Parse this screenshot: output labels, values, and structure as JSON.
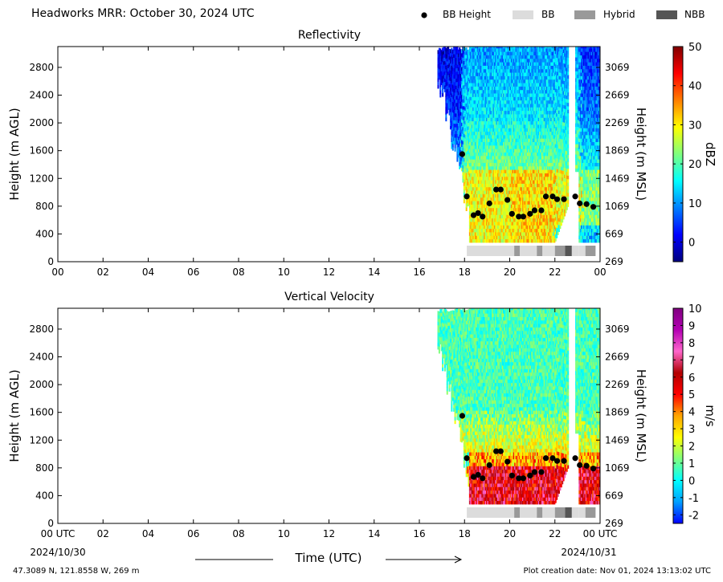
{
  "figure": {
    "title": "Headworks MRR:  October 30, 2024 UTC",
    "location": "47.3089 N, 121.8558 W, 269 m",
    "creation_date": "Plot creation date: Nov 01, 2024 13:13:02 UTC",
    "time_label": "Time (UTC)",
    "start_tick_label": "00 UTC",
    "end_tick_label": "00 UTC",
    "start_date": "2024/10/30",
    "end_date": "2024/10/31"
  },
  "legend": {
    "items": [
      {
        "label": "BB Height",
        "kind": "dot",
        "color": "#000000"
      },
      {
        "label": "BB",
        "kind": "patch",
        "color": "#dcdcdc"
      },
      {
        "label": "Hybrid",
        "kind": "patch",
        "color": "#999999"
      },
      {
        "label": "NBB",
        "kind": "patch",
        "color": "#555555"
      }
    ]
  },
  "chart_data": [
    {
      "type": "heatmap",
      "title": "Reflectivity",
      "ylabel": "Height (m AGL)",
      "ylabel_right": "Height (m MSL)",
      "colorbar_label": "dBZ",
      "colorbar_range": [
        -5,
        50
      ],
      "colorbar_ticks": [
        "0",
        "10",
        "20",
        "30",
        "40",
        "50"
      ],
      "colorbar_tick_values": [
        0,
        10,
        20,
        30,
        40,
        50
      ],
      "colormap": [
        "#00007f",
        "#0000ff",
        "#007fff",
        "#00ffff",
        "#7fff7f",
        "#ffff00",
        "#ff7f00",
        "#ff0000",
        "#7f0000"
      ],
      "xlim": [
        0,
        24
      ],
      "ylim": [
        0,
        3100
      ],
      "xticks": [
        "00",
        "02",
        "04",
        "06",
        "08",
        "10",
        "12",
        "14",
        "16",
        "18",
        "20",
        "22",
        "00"
      ],
      "yticks": [
        "0",
        "400",
        "800",
        "1200",
        "1600",
        "2000",
        "2400",
        "2800"
      ],
      "ytick_values": [
        0,
        400,
        800,
        1200,
        1600,
        2000,
        2400,
        2800
      ],
      "yticks_right": [
        "269",
        "669",
        "1069",
        "1469",
        "1869",
        "2269",
        "2669",
        "3069"
      ],
      "ytick_right_values": [
        0,
        400,
        800,
        1200,
        1600,
        2000,
        2400,
        2800
      ],
      "data_start_hour": 16.8,
      "data_gap_hours": [
        22.6,
        22.9
      ],
      "lower_data_limit_m": 280
    },
    {
      "type": "heatmap",
      "title": "Vertical Velocity",
      "ylabel": "Height (m AGL)",
      "ylabel_right": "Height (m MSL)",
      "colorbar_label": "m/s",
      "colorbar_range": [
        -2.5,
        10
      ],
      "colorbar_ticks": [
        "-2",
        "-1",
        "0",
        "1",
        "2",
        "3",
        "4",
        "5",
        "6",
        "7",
        "8",
        "9",
        "10"
      ],
      "colorbar_tick_values": [
        -2,
        -1,
        0,
        1,
        2,
        3,
        4,
        5,
        6,
        7,
        8,
        9,
        10
      ],
      "colormap": [
        "#0000ff",
        "#00a0ff",
        "#00ffff",
        "#7fff7f",
        "#ffff00",
        "#ffa500",
        "#ff0000",
        "#b20000",
        "#ff66cc",
        "#b300b3",
        "#800080"
      ],
      "xlim": [
        0,
        24
      ],
      "ylim": [
        0,
        3100
      ],
      "xticks": [
        "00 UTC",
        "02",
        "04",
        "06",
        "08",
        "10",
        "12",
        "14",
        "16",
        "18",
        "20",
        "22",
        "00 UTC"
      ],
      "yticks": [
        "0",
        "400",
        "800",
        "1200",
        "1600",
        "2000",
        "2400",
        "2800"
      ],
      "ytick_values": [
        0,
        400,
        800,
        1200,
        1600,
        2000,
        2400,
        2800
      ],
      "yticks_right": [
        "269",
        "669",
        "1069",
        "1469",
        "1869",
        "2269",
        "2669",
        "3069"
      ],
      "ytick_right_values": [
        0,
        400,
        800,
        1200,
        1600,
        2000,
        2400,
        2800
      ],
      "data_start_hour": 16.8,
      "data_gap_hours": [
        22.6,
        22.9
      ],
      "lower_data_limit_m": 280
    }
  ],
  "bb_height": {
    "x": [
      17.9,
      18.1,
      18.4,
      18.6,
      18.8,
      19.1,
      19.4,
      19.6,
      19.9,
      20.1,
      20.4,
      20.6,
      20.9,
      21.1,
      21.4,
      21.6,
      21.9,
      22.1,
      22.4,
      22.9,
      23.1,
      23.4,
      23.7
    ],
    "y": [
      1550,
      940,
      670,
      700,
      650,
      840,
      1040,
      1040,
      890,
      690,
      650,
      650,
      690,
      740,
      740,
      940,
      940,
      900,
      900,
      940,
      840,
      830,
      790
    ]
  },
  "bb_type_bar": {
    "segments": [
      {
        "start": 18.1,
        "end": 20.2,
        "type": "BB"
      },
      {
        "start": 20.2,
        "end": 20.45,
        "type": "Hybrid"
      },
      {
        "start": 20.45,
        "end": 21.2,
        "type": "BB"
      },
      {
        "start": 21.2,
        "end": 21.45,
        "type": "Hybrid"
      },
      {
        "start": 21.45,
        "end": 22.0,
        "type": "BB"
      },
      {
        "start": 22.0,
        "end": 22.45,
        "type": "Hybrid"
      },
      {
        "start": 22.45,
        "end": 22.75,
        "type": "NBB"
      },
      {
        "start": 22.75,
        "end": 23.05,
        "type": "BB"
      },
      {
        "start": 23.05,
        "end": 23.35,
        "type": "BB"
      },
      {
        "start": 23.35,
        "end": 23.8,
        "type": "Hybrid"
      }
    ]
  }
}
